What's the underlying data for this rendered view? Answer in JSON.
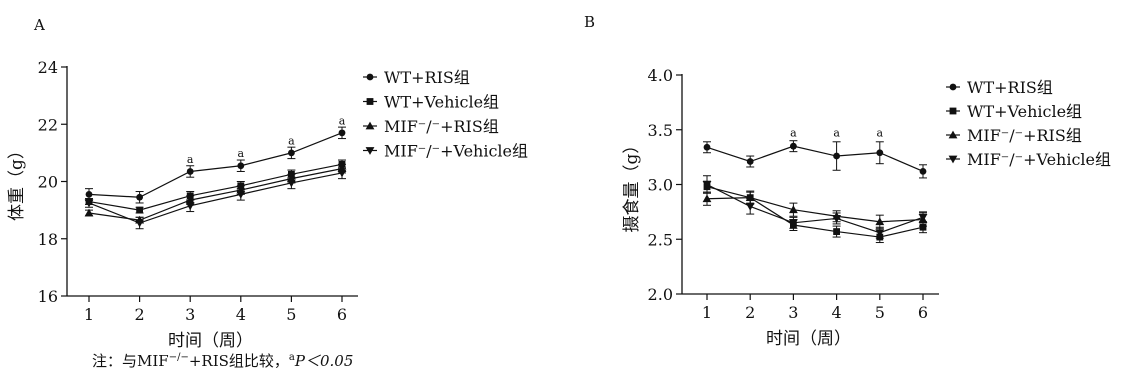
{
  "chart_data": [
    {
      "type": "line",
      "panel": "A",
      "xlabel": "时间（周）",
      "ylabel": "体重（g）",
      "x": [
        1,
        2,
        3,
        4,
        5,
        6
      ],
      "ylim": [
        16,
        24
      ],
      "yticks": [
        16,
        18,
        20,
        22,
        24
      ],
      "grid": false,
      "legend_position": "right",
      "series": [
        {
          "name": "WT+RIS组",
          "marker": "circle",
          "values": [
            19.55,
            19.45,
            20.35,
            20.55,
            21.0,
            21.7
          ],
          "errors": [
            0.2,
            0.2,
            0.2,
            0.2,
            0.2,
            0.2
          ]
        },
        {
          "name": "WT+Vehicle组",
          "marker": "square",
          "values": [
            19.3,
            19.0,
            19.5,
            19.85,
            20.25,
            20.6
          ],
          "errors": [
            0.1,
            0.1,
            0.15,
            0.15,
            0.15,
            0.15
          ]
        },
        {
          "name": "MIF⁻/⁻+RIS组",
          "marker": "triangle-up",
          "values": [
            18.9,
            18.65,
            19.35,
            19.7,
            20.1,
            20.45
          ],
          "errors": [
            0.1,
            0.1,
            0.15,
            0.15,
            0.15,
            0.15
          ]
        },
        {
          "name": "MIF⁻/⁻+Vehicle组",
          "marker": "triangle-down",
          "values": [
            19.25,
            18.55,
            19.15,
            19.55,
            19.95,
            20.3
          ],
          "errors": [
            0.15,
            0.2,
            0.2,
            0.2,
            0.2,
            0.2
          ]
        }
      ],
      "annotations": [
        {
          "text": "a",
          "x": 3,
          "y": 20.65
        },
        {
          "text": "a",
          "x": 4,
          "y": 20.85
        },
        {
          "text": "a",
          "x": 5,
          "y": 21.3
        },
        {
          "text": "a",
          "x": 6,
          "y": 22.0
        }
      ]
    },
    {
      "type": "line",
      "panel": "B",
      "xlabel": "时间（周）",
      "ylabel": "摄食量（g）",
      "x": [
        1,
        2,
        3,
        4,
        5,
        6
      ],
      "ylim": [
        2.0,
        4.0
      ],
      "yticks": [
        "2.0",
        "2.5",
        "3.0",
        "3.5",
        "4.0"
      ],
      "grid": false,
      "legend_position": "right",
      "series": [
        {
          "name": "WT+RIS组",
          "marker": "circle",
          "values": [
            3.34,
            3.21,
            3.35,
            3.26,
            3.29,
            3.12
          ],
          "errors": [
            0.05,
            0.05,
            0.05,
            0.13,
            0.1,
            0.06
          ]
        },
        {
          "name": "WT+Vehicle组",
          "marker": "square",
          "values": [
            2.98,
            2.88,
            2.63,
            2.57,
            2.52,
            2.61
          ],
          "errors": [
            0.05,
            0.05,
            0.05,
            0.05,
            0.05,
            0.05
          ]
        },
        {
          "name": "MIF⁻/⁻+RIS组",
          "marker": "triangle-up",
          "values": [
            2.87,
            2.88,
            2.77,
            2.71,
            2.66,
            2.68
          ],
          "errors": [
            0.06,
            0.06,
            0.06,
            0.05,
            0.06,
            0.06
          ]
        },
        {
          "name": "MIF⁻/⁻+Vehicle组",
          "marker": "triangle-down",
          "values": [
            3.0,
            2.8,
            2.65,
            2.69,
            2.56,
            2.7
          ],
          "errors": [
            0.08,
            0.07,
            0.05,
            0.05,
            0.05,
            0.05
          ]
        }
      ],
      "annotations": [
        {
          "text": "a",
          "x": 3,
          "y": 3.44
        },
        {
          "text": "a",
          "x": 4,
          "y": 3.44
        },
        {
          "text": "a",
          "x": 5,
          "y": 3.44
        }
      ]
    }
  ],
  "footnote": {
    "prefix": "注：与MIF",
    "superscript": "−/−",
    "middle": "+RIS组比较，",
    "marker": "a",
    "suffix": "P＜0.05"
  }
}
